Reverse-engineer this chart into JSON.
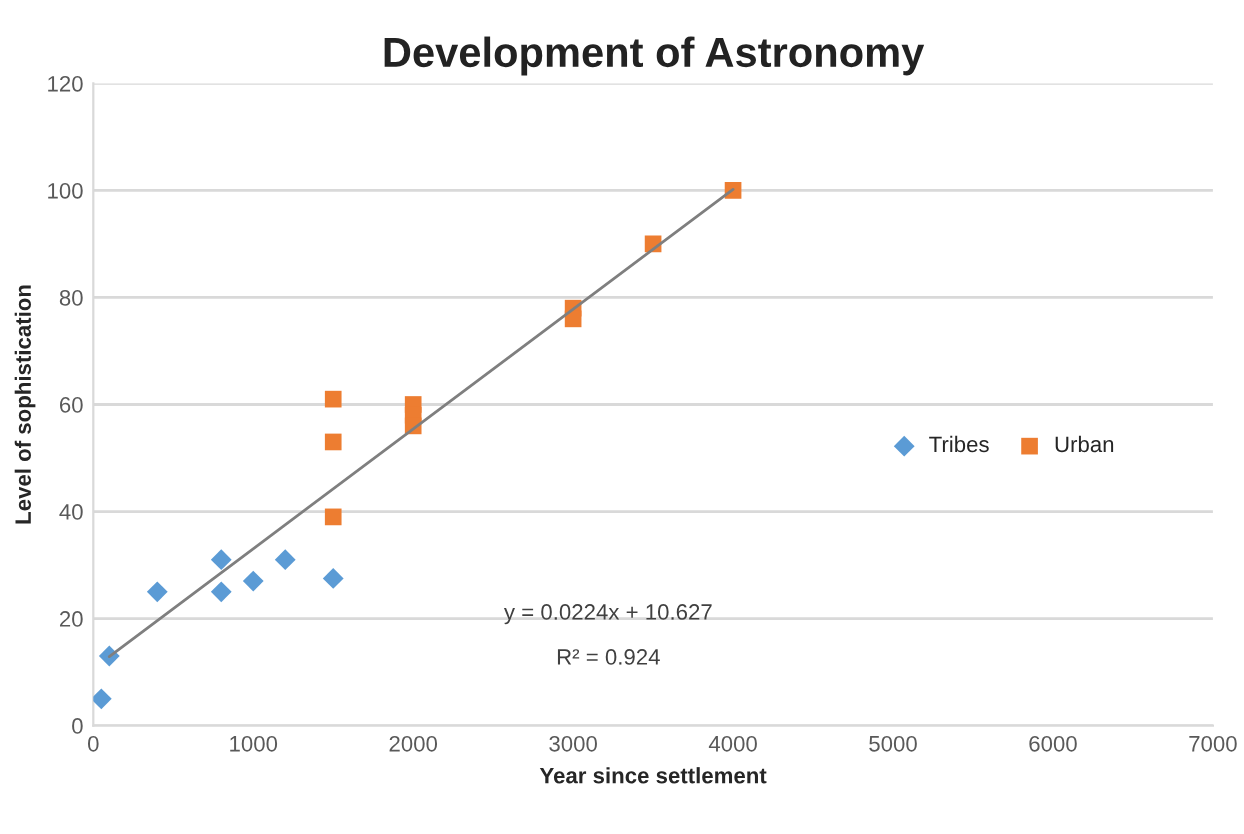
{
  "chart_data": {
    "type": "scatter",
    "title": "Development of Astronomy",
    "xlabel": "Year since settlement",
    "ylabel": "Level of sophistication",
    "xlim": [
      0,
      7000
    ],
    "xticks": [
      0,
      1000,
      2000,
      3000,
      4000,
      5000,
      6000,
      7000
    ],
    "ylim": [
      0,
      120
    ],
    "yticks": [
      0,
      20,
      40,
      60,
      80,
      100,
      120
    ],
    "grid": "y",
    "legend": "right",
    "series": [
      {
        "name": "Tribes",
        "color": "#5b9bd5",
        "marker": "diamond",
        "x": [
          50,
          100,
          400,
          800,
          800,
          1000,
          1200,
          1500
        ],
        "values": [
          5,
          13,
          25,
          31,
          25,
          27,
          31,
          27.5
        ]
      },
      {
        "name": "Urban",
        "color": "#ed7d31",
        "marker": "square",
        "x": [
          1500,
          1500,
          1500,
          2000,
          2000,
          2000,
          3000,
          3000,
          3500,
          4000
        ],
        "values": [
          61,
          53,
          39,
          60,
          58,
          56,
          78,
          76,
          90,
          100
        ]
      },
      {
        "type": "line",
        "color": "#7f7f7f",
        "line_style": "solid",
        "x": [
          100,
          4000
        ],
        "values": [
          12.9,
          100.2
        ]
      }
    ],
    "annotations": [
      "y = 0.0224x + 10.627",
      "R² = 0.924"
    ]
  }
}
